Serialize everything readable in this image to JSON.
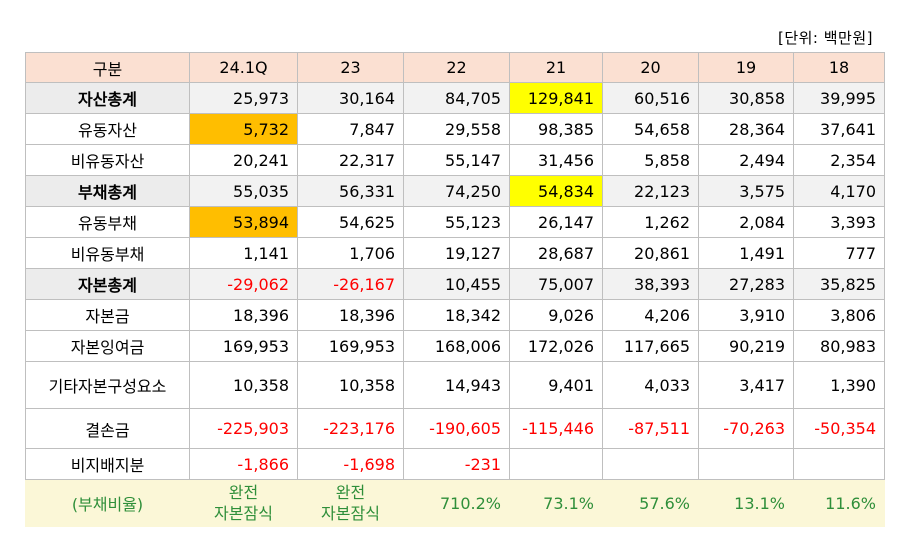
{
  "unit_label": "[단위: 백만원]",
  "header": [
    "구분",
    "24.1Q",
    "23",
    "22",
    "21",
    "20",
    "19",
    "18"
  ],
  "rows": [
    {
      "label": "자산총계",
      "values": [
        "25,973",
        "30,164",
        "84,705",
        "129,841",
        "60,516",
        "30,858",
        "39,995"
      ]
    },
    {
      "label": "유동자산",
      "values": [
        "5,732",
        "7,847",
        "29,558",
        "98,385",
        "54,658",
        "28,364",
        "37,641"
      ]
    },
    {
      "label": "비유동자산",
      "values": [
        "20,241",
        "22,317",
        "55,147",
        "31,456",
        "5,858",
        "2,494",
        "2,354"
      ]
    },
    {
      "label": "부채총계",
      "values": [
        "55,035",
        "56,331",
        "74,250",
        "54,834",
        "22,123",
        "3,575",
        "4,170"
      ]
    },
    {
      "label": "유동부채",
      "values": [
        "53,894",
        "54,625",
        "55,123",
        "26,147",
        "1,262",
        "2,084",
        "3,393"
      ]
    },
    {
      "label": "비유동부채",
      "values": [
        "1,141",
        "1,706",
        "19,127",
        "28,687",
        "20,861",
        "1,491",
        "777"
      ]
    },
    {
      "label": "자본총계",
      "values": [
        "-29,062",
        "-26,167",
        "10,455",
        "75,007",
        "38,393",
        "27,283",
        "35,825"
      ]
    },
    {
      "label": "자본금",
      "values": [
        "18,396",
        "18,396",
        "18,342",
        "9,026",
        "4,206",
        "3,910",
        "3,806"
      ]
    },
    {
      "label": "자본잉여금",
      "values": [
        "169,953",
        "169,953",
        "168,006",
        "172,026",
        "117,665",
        "90,219",
        "80,983"
      ]
    },
    {
      "label": "기타자본구성요소",
      "values": [
        "10,358",
        "10,358",
        "14,943",
        "9,401",
        "4,033",
        "3,417",
        "1,390"
      ]
    },
    {
      "label": "결손금",
      "values": [
        "-225,903",
        "-223,176",
        "-190,605",
        "-115,446",
        "-87,511",
        "-70,263",
        "-50,354"
      ]
    },
    {
      "label": "비지배지분",
      "values": [
        "-1,866",
        "-1,698",
        "-231",
        "",
        "",
        "",
        ""
      ]
    }
  ],
  "ratio": {
    "label": "(부채비율)",
    "values": [
      "완전\n자본잠식",
      "완전\n자본잠식",
      "710.2%",
      "73.1%",
      "57.6%",
      "13.1%",
      "11.6%"
    ]
  },
  "colors": {
    "header_bg": "#fbe0d2",
    "summary_bg": "#ececec",
    "highlight_orange": "#ffbe00",
    "highlight_yellow": "#ffff00",
    "negative_text": "#ff0000",
    "ratio_bg": "#fbf7d7",
    "ratio_text": "#2f8f3a"
  }
}
